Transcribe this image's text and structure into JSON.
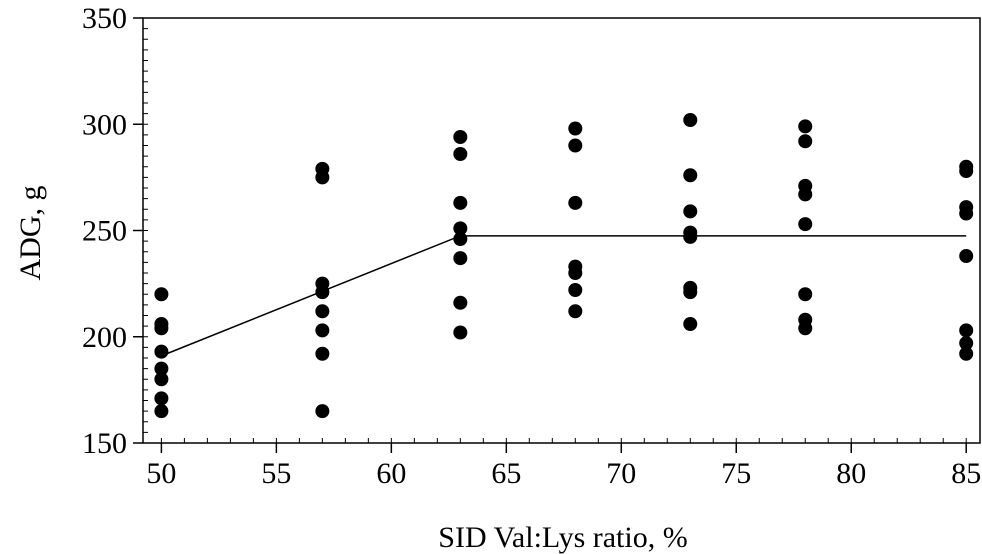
{
  "chart_data": {
    "type": "scatter",
    "title": "",
    "xlabel": "SID Val:Lys ratio, %",
    "ylabel": "ADG, g",
    "xlim": [
      49.2,
      85.6
    ],
    "ylim": [
      150,
      350
    ],
    "x_ticks": [
      50,
      55,
      60,
      65,
      70,
      75,
      80,
      85
    ],
    "y_ticks": [
      150,
      200,
      250,
      300,
      350
    ],
    "grid": false,
    "points": [
      {
        "x": 50,
        "y": 220
      },
      {
        "x": 50,
        "y": 206
      },
      {
        "x": 50,
        "y": 204
      },
      {
        "x": 50,
        "y": 193
      },
      {
        "x": 50,
        "y": 185
      },
      {
        "x": 50,
        "y": 180
      },
      {
        "x": 50,
        "y": 171
      },
      {
        "x": 50,
        "y": 165
      },
      {
        "x": 57,
        "y": 279
      },
      {
        "x": 57,
        "y": 275
      },
      {
        "x": 57,
        "y": 225
      },
      {
        "x": 57,
        "y": 221
      },
      {
        "x": 57,
        "y": 212
      },
      {
        "x": 57,
        "y": 203
      },
      {
        "x": 57,
        "y": 192
      },
      {
        "x": 57,
        "y": 165
      },
      {
        "x": 63,
        "y": 294
      },
      {
        "x": 63,
        "y": 286
      },
      {
        "x": 63,
        "y": 263
      },
      {
        "x": 63,
        "y": 251
      },
      {
        "x": 63,
        "y": 246
      },
      {
        "x": 63,
        "y": 237
      },
      {
        "x": 63,
        "y": 216
      },
      {
        "x": 63,
        "y": 202
      },
      {
        "x": 68,
        "y": 298
      },
      {
        "x": 68,
        "y": 290
      },
      {
        "x": 68,
        "y": 263
      },
      {
        "x": 68,
        "y": 233
      },
      {
        "x": 68,
        "y": 230
      },
      {
        "x": 68,
        "y": 222
      },
      {
        "x": 68,
        "y": 212
      },
      {
        "x": 73,
        "y": 302
      },
      {
        "x": 73,
        "y": 276
      },
      {
        "x": 73,
        "y": 259
      },
      {
        "x": 73,
        "y": 249
      },
      {
        "x": 73,
        "y": 247
      },
      {
        "x": 73,
        "y": 223
      },
      {
        "x": 73,
        "y": 221
      },
      {
        "x": 73,
        "y": 206
      },
      {
        "x": 78,
        "y": 299
      },
      {
        "x": 78,
        "y": 292
      },
      {
        "x": 78,
        "y": 271
      },
      {
        "x": 78,
        "y": 267
      },
      {
        "x": 78,
        "y": 253
      },
      {
        "x": 78,
        "y": 220
      },
      {
        "x": 78,
        "y": 208
      },
      {
        "x": 78,
        "y": 204
      },
      {
        "x": 85,
        "y": 280
      },
      {
        "x": 85,
        "y": 278
      },
      {
        "x": 85,
        "y": 261
      },
      {
        "x": 85,
        "y": 258
      },
      {
        "x": 85,
        "y": 238
      },
      {
        "x": 85,
        "y": 203
      },
      {
        "x": 85,
        "y": 197
      },
      {
        "x": 85,
        "y": 192
      }
    ],
    "fit_line": [
      {
        "x": 50,
        "y": 191
      },
      {
        "x": 63,
        "y": 247.5
      },
      {
        "x": 85,
        "y": 247.5
      }
    ]
  }
}
